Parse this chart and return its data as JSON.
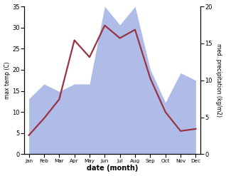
{
  "months": [
    "Jan",
    "Feb",
    "Mar",
    "Apr",
    "May",
    "Jun",
    "Jul",
    "Aug",
    "Sep",
    "Oct",
    "Nov",
    "Dec"
  ],
  "temp_max": [
    4.5,
    8.5,
    13.0,
    27.0,
    23.0,
    30.5,
    27.5,
    29.5,
    18.0,
    10.0,
    5.5,
    6.0
  ],
  "precipitation": [
    7.5,
    9.5,
    8.5,
    9.5,
    9.5,
    20.0,
    17.5,
    20.0,
    11.5,
    7.0,
    11.0,
    10.0
  ],
  "temp_ylim": [
    0,
    35
  ],
  "precip_ylim": [
    0,
    20
  ],
  "temp_color": "#993344",
  "precip_fill_color": "#b0bce8",
  "temp_linewidth": 1.6,
  "xlabel": "date (month)",
  "ylabel_left": "max temp (C)",
  "ylabel_right": "med. precipitation (kg/m2)",
  "background_color": "#ffffff",
  "right_yticks": [
    0,
    5,
    10,
    15,
    20
  ],
  "left_yticks": [
    0,
    5,
    10,
    15,
    20,
    25,
    30,
    35
  ]
}
